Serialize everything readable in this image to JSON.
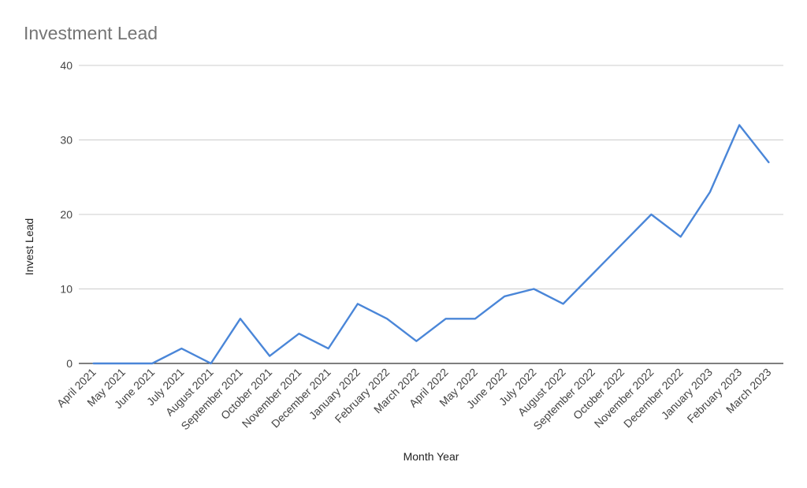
{
  "chart_data": {
    "type": "line",
    "title": "Investment Lead",
    "xlabel": "Month Year",
    "ylabel": "Invest Lead",
    "categories": [
      "April 2021",
      "May 2021",
      "June 2021",
      "July 2021",
      "August 2021",
      "September 2021",
      "October 2021",
      "November 2021",
      "December 2021",
      "January 2022",
      "February 2022",
      "March 2022",
      "April 2022",
      "May 2022",
      "June 2022",
      "July 2022",
      "August 2022",
      "September 2022",
      "October 2022",
      "November 2022",
      "December 2022",
      "January 2023",
      "February 2023",
      "March 2023"
    ],
    "series": [
      {
        "values": [
          0,
          0,
          0,
          2,
          0,
          6,
          1,
          4,
          2,
          8,
          6,
          3,
          6,
          6,
          9,
          10,
          8,
          12,
          16,
          20,
          17,
          23,
          32,
          27
        ]
      }
    ],
    "ylim": [
      0,
      40
    ],
    "yticks": [
      0,
      10,
      20,
      30,
      40
    ],
    "grid": true,
    "line_color": "#4a86d8",
    "grid_color": "#cccccc",
    "baseline_color": "#333333"
  }
}
